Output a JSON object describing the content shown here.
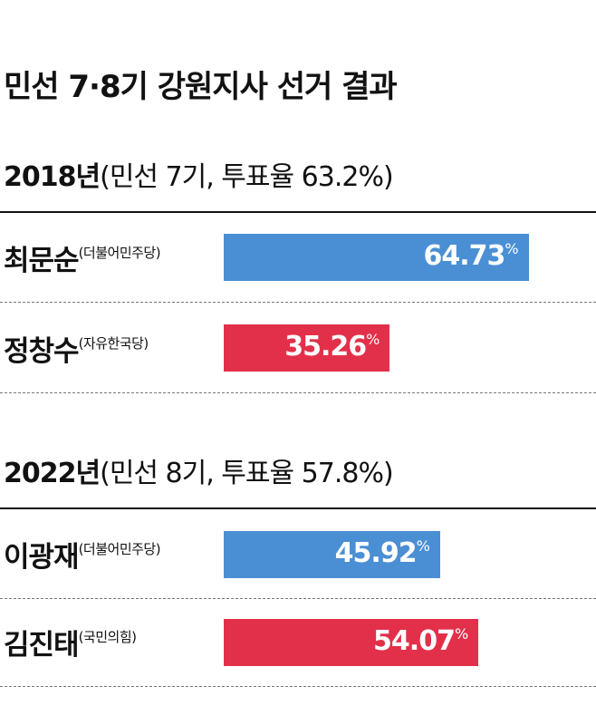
{
  "title": "민선 7·8기 강원지사 선거 결과",
  "chart_data": {
    "type": "bar",
    "unit": "%",
    "xlim": [
      0,
      100
    ],
    "colors": {
      "더불어민주당": "#4a8fd4",
      "자유한국당": "#e3304a",
      "국민의힘": "#e3304a"
    },
    "groups": [
      {
        "year": "2018년",
        "meta": "(민선 7기, 투표율 63.2%)",
        "candidates": [
          {
            "name": "최문순",
            "party": "(더불어민주당)",
            "value": 64.73,
            "value_text": "64.73",
            "color": "#4a8fd4"
          },
          {
            "name": "정창수",
            "party": "(자유한국당)",
            "value": 35.26,
            "value_text": "35.26",
            "color": "#e3304a"
          }
        ]
      },
      {
        "year": "2022년",
        "meta": "(민선 8기, 투표율 57.8%)",
        "candidates": [
          {
            "name": "이광재",
            "party": "(더불어민주당)",
            "value": 45.92,
            "value_text": "45.92",
            "color": "#4a8fd4"
          },
          {
            "name": "김진태",
            "party": "(국민의힘)",
            "value": 54.07,
            "value_text": "54.07",
            "color": "#e3304a"
          }
        ]
      }
    ]
  }
}
